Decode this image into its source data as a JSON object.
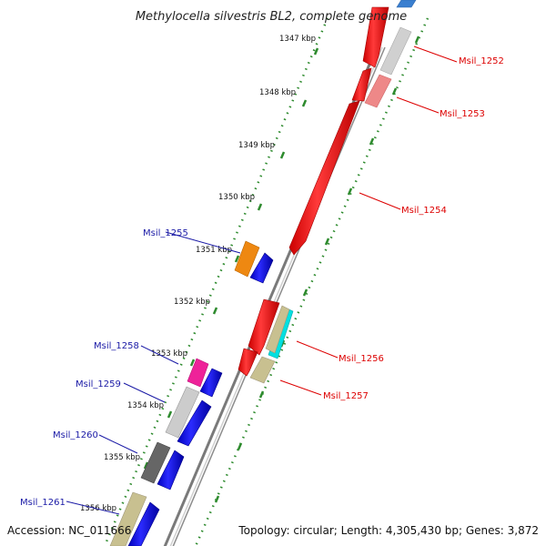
{
  "title": "Methylocella silvestris BL2, complete genome",
  "footer": {
    "accession": "Accession: NC_011666",
    "topology": "Topology: circular; Length: 4,305,430 bp; Genes: 3,872"
  },
  "ticks": [
    "1347 kbp",
    "1348 kbp",
    "1349 kbp",
    "1350 kbp",
    "1351 kbp",
    "1352 kbp",
    "1353 kbp",
    "1354 kbp",
    "1355 kbp",
    "1356 kbp"
  ],
  "colors": {
    "forward_label": "#dd0000",
    "reverse_label": "#1a1aa6",
    "backbone": "#8c8c8c",
    "tick_dots": "#2e8b2e"
  },
  "genes": [
    {
      "label": "Msil_1252",
      "strand": "forward",
      "color": "#d0d0d0"
    },
    {
      "label": "Msil_1253",
      "strand": "forward",
      "color": "#ee8888"
    },
    {
      "label": "Msil_1254",
      "strand": "forward",
      "color": "#ff0000"
    },
    {
      "label": "Msil_1255",
      "strand": "reverse",
      "color": "#ee8811"
    },
    {
      "label": "Msil_1256",
      "strand": "forward",
      "color": "#00e0e0"
    },
    {
      "label": "Msil_1257",
      "strand": "forward",
      "color": "#c8c090"
    },
    {
      "label": "Msil_1258",
      "strand": "reverse",
      "color": "#ee2299"
    },
    {
      "label": "Msil_1259",
      "strand": "reverse",
      "color": "#cccccc"
    },
    {
      "label": "Msil_1260",
      "strand": "reverse",
      "color": "#666666"
    },
    {
      "label": "Msil_1261",
      "strand": "reverse",
      "color": "#c8c090"
    }
  ]
}
